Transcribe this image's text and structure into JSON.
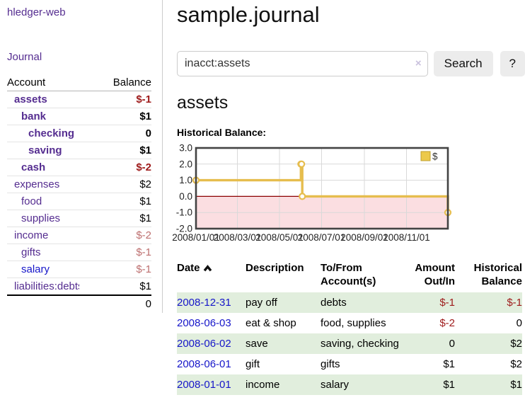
{
  "sidebar": {
    "brand": "hledger-web",
    "nav": {
      "journal": "Journal"
    },
    "accounts_table": {
      "headers": {
        "account": "Account",
        "balance": "Balance"
      },
      "rows": [
        {
          "name": "assets",
          "depth": 1,
          "bold": true,
          "balance": "$-1",
          "balance_tone": "neg-strong",
          "link_tone": "purple"
        },
        {
          "name": "bank",
          "depth": 2,
          "bold": true,
          "balance": "$1",
          "balance_tone": "plain",
          "link_tone": "purple"
        },
        {
          "name": "checking",
          "depth": 3,
          "bold": true,
          "balance": "0",
          "balance_tone": "plain",
          "link_tone": "purple"
        },
        {
          "name": "saving",
          "depth": 3,
          "bold": true,
          "balance": "$1",
          "balance_tone": "plain",
          "link_tone": "purple"
        },
        {
          "name": "cash",
          "depth": 2,
          "bold": true,
          "balance": "$-2",
          "balance_tone": "neg-strong",
          "link_tone": "purple"
        },
        {
          "name": "expenses",
          "depth": 1,
          "bold": false,
          "balance": "$2",
          "balance_tone": "plain",
          "link_tone": "purple"
        },
        {
          "name": "food",
          "depth": 2,
          "bold": false,
          "balance": "$1",
          "balance_tone": "plain",
          "link_tone": "purple"
        },
        {
          "name": "supplies",
          "depth": 2,
          "bold": false,
          "balance": "$1",
          "balance_tone": "plain",
          "link_tone": "purple"
        },
        {
          "name": "income",
          "depth": 1,
          "bold": false,
          "balance": "$-2",
          "balance_tone": "neg-faint",
          "link_tone": "purple"
        },
        {
          "name": "gifts",
          "depth": 2,
          "bold": false,
          "balance": "$-1",
          "balance_tone": "neg-faint",
          "link_tone": "purple"
        },
        {
          "name": "salary",
          "depth": 2,
          "bold": false,
          "balance": "$-1",
          "balance_tone": "neg-faint",
          "link_tone": "blue"
        },
        {
          "name": "liabilities:debts",
          "depth": 1,
          "bold": false,
          "balance": "$1",
          "balance_tone": "plain",
          "link_tone": "purple"
        }
      ],
      "total": "0"
    }
  },
  "header": {
    "title": "sample.journal"
  },
  "search": {
    "value": "inacct:assets",
    "clear_icon": "×",
    "button": "Search",
    "help_button": "?"
  },
  "account_page": {
    "title": "assets",
    "chart_label": "Historical Balance:"
  },
  "chart_data": {
    "type": "line",
    "style": "step-after",
    "title": "Historical Balance of assets",
    "series": [
      {
        "name": "$",
        "color": "#e6bd4e",
        "points": [
          {
            "date": "2008-01-01",
            "value": 1
          },
          {
            "date": "2008-06-01",
            "value": 2
          },
          {
            "date": "2008-06-02",
            "value": 2
          },
          {
            "date": "2008-06-03",
            "value": 0
          },
          {
            "date": "2008-12-31",
            "value": -1
          }
        ]
      }
    ],
    "x_range": [
      "2008-01-01",
      "2008-12-31"
    ],
    "x_ticks": [
      "2008/01/01",
      "2008/03/01",
      "2008/05/01",
      "2008/07/01",
      "2008/09/01",
      "2008/11/01"
    ],
    "y_ticks": [
      3.0,
      2.0,
      1.0,
      0.0,
      -1.0,
      -2.0
    ],
    "ylim": [
      -2,
      3
    ],
    "grid": true,
    "legend": {
      "position": "top-right",
      "label": "$",
      "swatch_fill": "#ecc94b",
      "swatch_border": "#bfa02f"
    },
    "negative_region_color": "#fbdee1",
    "zero_line_color": "#8b0000",
    "grid_color": "#d9d9d9",
    "frame_color": "#434343"
  },
  "register": {
    "headers": {
      "date": "Date",
      "description": "Description",
      "accounts": "To/From Account(s)",
      "amount": "Amount Out/In",
      "balance": "Historical Balance"
    },
    "sort": "ascending",
    "rows": [
      {
        "date": "2008-12-31",
        "description": "pay off",
        "accounts": "debts",
        "amount": "$-1",
        "amount_tone": "neg",
        "balance": "$-1",
        "balance_tone": "neg"
      },
      {
        "date": "2008-06-03",
        "description": "eat & shop",
        "accounts": "food, supplies",
        "amount": "$-2",
        "amount_tone": "neg",
        "balance": "0",
        "balance_tone": "plain"
      },
      {
        "date": "2008-06-02",
        "description": "save",
        "accounts": "saving, checking",
        "amount": "0",
        "amount_tone": "plain",
        "balance": "$2",
        "balance_tone": "plain"
      },
      {
        "date": "2008-06-01",
        "description": "gift",
        "accounts": "gifts",
        "amount": "$1",
        "amount_tone": "plain",
        "balance": "$2",
        "balance_tone": "plain"
      },
      {
        "date": "2008-01-01",
        "description": "income",
        "accounts": "salary",
        "amount": "$1",
        "amount_tone": "plain",
        "balance": "$1",
        "balance_tone": "plain"
      }
    ]
  },
  "colors": {
    "link_purple": "#552d90",
    "link_blue": "#1616c9",
    "negative_strong": "#9e1b1b",
    "negative_faint": "#bd6f6f",
    "row_stripe_green": "#e1eedd",
    "button_bg": "#ececec"
  }
}
